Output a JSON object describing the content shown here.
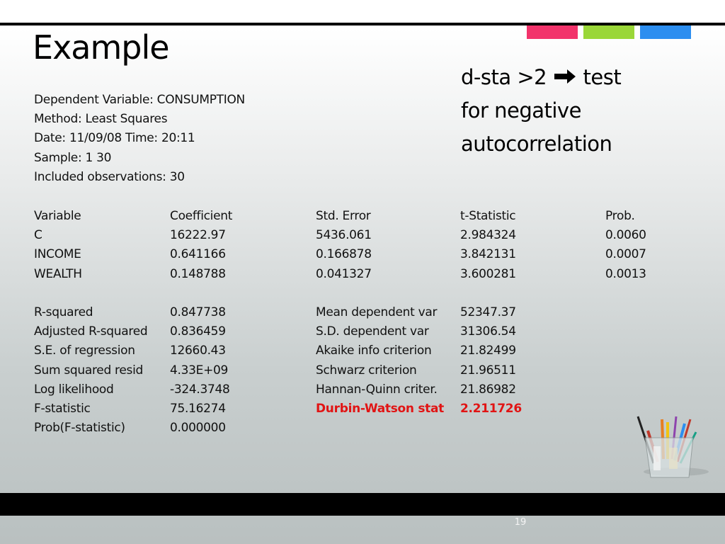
{
  "slide": {
    "title": "Example",
    "page_number": "19"
  },
  "callout": {
    "part1": "d-sta >2",
    "arrow_icon": "arrow-right-icon",
    "part2": "test",
    "line2": "for negative",
    "line3": "autocorrelation"
  },
  "meta": [
    "Dependent Variable: CONSUMPTION",
    "Method: Least Squares",
    "Date: 11/09/08   Time: 20:11",
    "Sample: 1 30",
    "Included observations: 30"
  ],
  "coefficients": {
    "headers": [
      "Variable",
      "Coefficient",
      "Std. Error",
      "t-Statistic",
      "Prob."
    ],
    "rows": [
      [
        "C",
        "16222.97",
        "5436.061",
        "2.984324",
        "0.0060"
      ],
      [
        "INCOME",
        "0.641166",
        "0.166878",
        "3.842131",
        "0.0007"
      ],
      [
        "WEALTH",
        "0.148788",
        "0.041327",
        "3.600281",
        "0.0013"
      ]
    ]
  },
  "statistics": {
    "rows": [
      [
        "R-squared",
        "0.847738",
        "Mean dependent var",
        "52347.37"
      ],
      [
        "Adjusted R-squared",
        "0.836459",
        "S.D. dependent var",
        "31306.54"
      ],
      [
        "S.E. of regression",
        "12660.43",
        "Akaike info criterion",
        "21.82499"
      ],
      [
        "Sum squared resid",
        "4.33E+09",
        "Schwarz criterion",
        "21.96511"
      ],
      [
        "Log likelihood",
        "-324.3748",
        "Hannan-Quinn criter.",
        "21.86982"
      ],
      [
        "F-statistic",
        "75.16274",
        "Durbin-Watson stat",
        "2.211726"
      ],
      [
        "Prob(F-statistic)",
        "0.000000",
        "",
        ""
      ]
    ],
    "highlight_color": "#e11414"
  },
  "colors": {
    "accent_pink": "#f2336b",
    "accent_green": "#9ad738",
    "accent_blue": "#2c8ef0"
  },
  "decor": {
    "pens_icon": "pen-cup-icon"
  }
}
